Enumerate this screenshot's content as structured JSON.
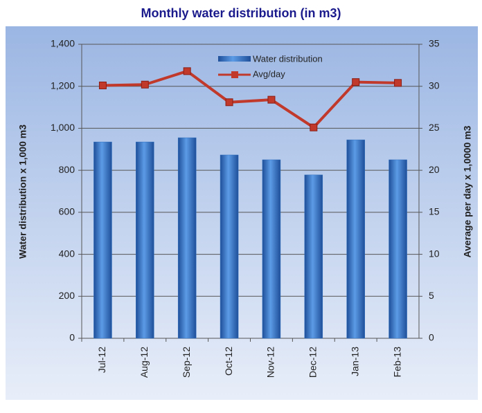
{
  "chart_data": {
    "type": "bar_line",
    "title": "Monthly water distribution (in m3)",
    "categories": [
      "Jul-12",
      "Aug-12",
      "Sep-12",
      "Oct-12",
      "Nov-12",
      "Dec-12",
      "Jan-13",
      "Feb-13"
    ],
    "series": [
      {
        "name": "Water distribution",
        "color": "#2f6fbf",
        "values": [
          935,
          935,
          955,
          873,
          850,
          778,
          945,
          850
        ]
      },
      {
        "name": "Avg/day",
        "color": "#c0392b",
        "axis": "y2",
        "values": [
          30.1,
          30.2,
          31.8,
          28.1,
          28.4,
          25.1,
          30.5,
          30.4
        ]
      }
    ],
    "ylabel": "Water distribution x 1,000 m3",
    "y2label": "Average per day x 1,0000 m3",
    "ylim": [
      0,
      1400
    ],
    "yticks": [
      0,
      200,
      400,
      600,
      800,
      {
        "value": 1000,
        "label": "1,000"
      },
      {
        "value": 1200,
        "label": "1,200"
      },
      {
        "value": 1400,
        "label": "1,400"
      }
    ],
    "y2lim": [
      0,
      35
    ],
    "y2ticks": [
      0,
      5,
      10,
      15,
      20,
      25,
      30,
      35
    ],
    "grid": true
  }
}
